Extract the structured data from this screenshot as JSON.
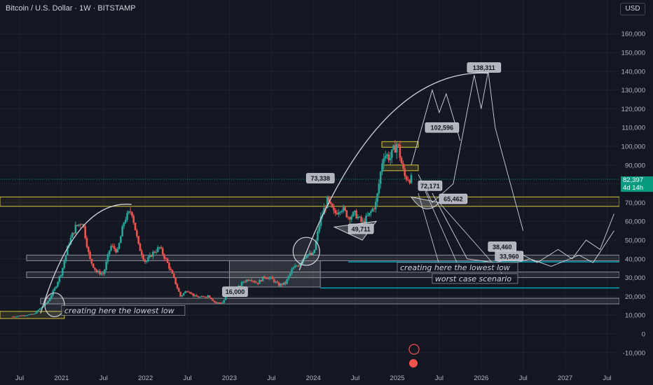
{
  "header": {
    "title": "Bitcoin / U.S. Dollar · 1W · BITSTAMP",
    "currency_button": "USD"
  },
  "price_badge": {
    "price": "82,397",
    "countdown": "4d 14h",
    "color": "#089981"
  },
  "chart_data": {
    "type": "candlestick",
    "y_ticks": [
      160000,
      150000,
      140000,
      130000,
      120000,
      110000,
      100000,
      90000,
      80000,
      70000,
      60000,
      50000,
      40000,
      30000,
      20000,
      10000,
      0,
      -10000
    ],
    "y_tick_labels": [
      "160,000",
      "150,000",
      "140,000",
      "130,000",
      "120,000",
      "110,000",
      "100,000",
      "90,000",
      "80,000",
      "70,000",
      "60,000",
      "50,000",
      "40,000",
      "30,000",
      "20,000",
      "10,000",
      "0",
      "-10,000"
    ],
    "ylim": [
      -12000,
      170000
    ],
    "x_ticks": [
      {
        "label": "Jul",
        "date": "2020-07"
      },
      {
        "label": "2021",
        "date": "2021-01"
      },
      {
        "label": "Jul",
        "date": "2021-07"
      },
      {
        "label": "2022",
        "date": "2022-01"
      },
      {
        "label": "Jul",
        "date": "2022-07"
      },
      {
        "label": "2023",
        "date": "2023-01"
      },
      {
        "label": "Jul",
        "date": "2023-07"
      },
      {
        "label": "2024",
        "date": "2024-01"
      },
      {
        "label": "Jul",
        "date": "2024-07"
      },
      {
        "label": "2025",
        "date": "2025-01"
      },
      {
        "label": "Jul",
        "date": "2025-07"
      },
      {
        "label": "2026",
        "date": "2026-01"
      },
      {
        "label": "Jul",
        "date": "2026-07"
      },
      {
        "label": "2027",
        "date": "2027-01"
      },
      {
        "label": "Jul",
        "date": "2027-07"
      }
    ],
    "price_path": [
      [
        "2020-06",
        9200
      ],
      [
        "2020-09",
        10500
      ],
      [
        "2020-11",
        17000
      ],
      [
        "2020-12",
        24000
      ],
      [
        "2021-01",
        33000
      ],
      [
        "2021-02",
        48000
      ],
      [
        "2021-03",
        57000
      ],
      [
        "2021-04",
        60000
      ],
      [
        "2021-05",
        40000
      ],
      [
        "2021-06",
        33000
      ],
      [
        "2021-07",
        32000
      ],
      [
        "2021-08",
        47000
      ],
      [
        "2021-09",
        44000
      ],
      [
        "2021-10",
        61000
      ],
      [
        "2021-11",
        66000
      ],
      [
        "2021-12",
        47000
      ],
      [
        "2022-01",
        38000
      ],
      [
        "2022-02",
        43000
      ],
      [
        "2022-03",
        46000
      ],
      [
        "2022-04",
        39000
      ],
      [
        "2022-05",
        30000
      ],
      [
        "2022-06",
        20000
      ],
      [
        "2022-07",
        23500
      ],
      [
        "2022-08",
        20000
      ],
      [
        "2022-09",
        19500
      ],
      [
        "2022-10",
        20500
      ],
      [
        "2022-11",
        16500
      ],
      [
        "2022-12",
        16600
      ],
      [
        "2023-01",
        23000
      ],
      [
        "2023-02",
        23500
      ],
      [
        "2023-03",
        28000
      ],
      [
        "2023-04",
        29500
      ],
      [
        "2023-05",
        27000
      ],
      [
        "2023-06",
        30500
      ],
      [
        "2023-07",
        29500
      ],
      [
        "2023-08",
        26000
      ],
      [
        "2023-09",
        27000
      ],
      [
        "2023-10",
        34500
      ],
      [
        "2023-11",
        37500
      ],
      [
        "2023-12",
        42500
      ],
      [
        "2024-01",
        42000
      ],
      [
        "2024-02",
        61000
      ],
      [
        "2024-03",
        71000
      ],
      [
        "2024-04",
        64000
      ],
      [
        "2024-05",
        67500
      ],
      [
        "2024-06",
        62500
      ],
      [
        "2024-07",
        64000
      ],
      [
        "2024-08",
        59000
      ],
      [
        "2024-09",
        63500
      ],
      [
        "2024-10",
        70000
      ],
      [
        "2024-11",
        96000
      ],
      [
        "2024-12",
        94000
      ],
      [
        "2025-01",
        102000
      ],
      [
        "2025-02",
        84000
      ],
      [
        "2025-03",
        82400
      ]
    ],
    "current_price": 82397,
    "annotations": {
      "levels": [
        "138,311",
        "102,596",
        "72,171",
        "65,462",
        "73,338",
        "49,711",
        "38,460",
        "33,960",
        "16,000"
      ],
      "texts": [
        "creating here the lowest low",
        "creating here the lowest low",
        "worst case scenario"
      ]
    },
    "support_zones": [
      [
        68000,
        73000
      ],
      [
        42000,
        39000
      ],
      [
        33000,
        30000
      ],
      [
        19000,
        16000
      ]
    ],
    "colors": {
      "up": "#26a69a",
      "down": "#ef5350",
      "grid": "#1e222d",
      "zone_yellow": "#d6c23f",
      "cyan": "#00bcd4",
      "label_bg": "#b2b5be"
    }
  }
}
